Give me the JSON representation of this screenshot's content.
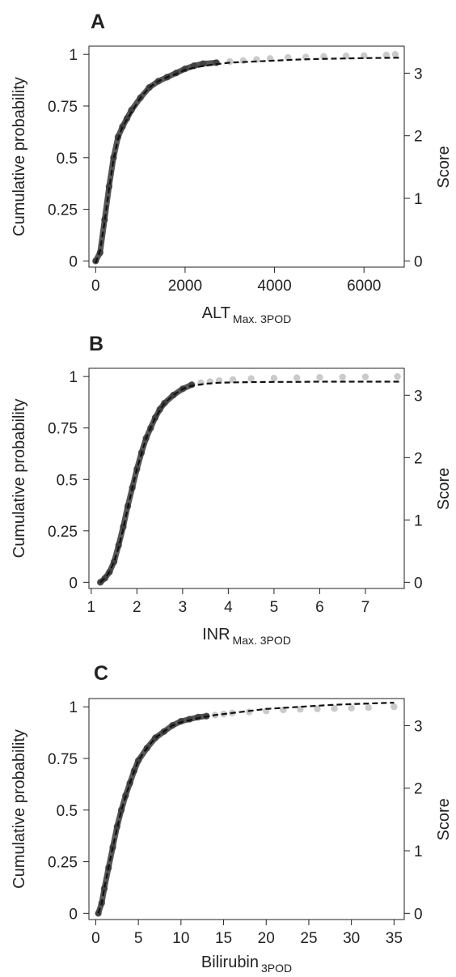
{
  "chart_data": [
    {
      "panel": "A",
      "type": "scatter",
      "x_label_main": "ALT",
      "x_label_sub": "Max. 3POD",
      "y_label_left": "Cumulative probability",
      "y_label_right": "Score",
      "xlim": [
        -150,
        6900
      ],
      "ylim": [
        -0.03,
        1.04
      ],
      "x_ticks": [
        0,
        2000,
        4000,
        6000
      ],
      "x_tick_labels": [
        "0",
        "2000",
        "4000",
        "6000"
      ],
      "y_ticks": [
        0,
        0.25,
        0.5,
        0.75,
        1
      ],
      "y_tick_labels": [
        "0",
        "0.25",
        "0.5",
        "0.75",
        "1"
      ],
      "score_ticks": [
        0,
        1,
        2,
        3
      ],
      "score_tick_labels": [
        "0",
        "1",
        "2",
        "3"
      ],
      "score_max": 3.3,
      "series": [
        {
          "kind": "points",
          "x": [
            0,
            100,
            200,
            300,
            400,
            500,
            600,
            700,
            800,
            1000,
            1200,
            1400,
            1600,
            1800,
            2000,
            2200,
            2400,
            2700,
            3000,
            3300,
            3600,
            3900,
            4300,
            4700,
            5100,
            5600,
            6000,
            6500,
            6700
          ],
          "y": [
            0.0,
            0.04,
            0.2,
            0.36,
            0.5,
            0.6,
            0.65,
            0.69,
            0.73,
            0.79,
            0.84,
            0.87,
            0.89,
            0.91,
            0.93,
            0.945,
            0.955,
            0.96,
            0.965,
            0.97,
            0.975,
            0.98,
            0.985,
            0.987,
            0.99,
            0.992,
            0.994,
            0.997,
            1.0
          ]
        },
        {
          "kind": "fit",
          "x": [
            0,
            100,
            200,
            300,
            400,
            500,
            600,
            800,
            1000,
            1200,
            1400,
            1600,
            1800,
            2000,
            2300,
            2600,
            3000,
            3500,
            4000,
            4500,
            5000,
            5500,
            6000,
            6500,
            6800
          ],
          "y": [
            -0.01,
            0.05,
            0.19,
            0.35,
            0.49,
            0.59,
            0.65,
            0.72,
            0.79,
            0.84,
            0.87,
            0.89,
            0.905,
            0.925,
            0.94,
            0.95,
            0.96,
            0.965,
            0.97,
            0.975,
            0.978,
            0.98,
            0.982,
            0.983,
            0.984
          ]
        }
      ]
    },
    {
      "panel": "B",
      "type": "scatter",
      "x_label_main": "INR",
      "x_label_sub": "Max. 3POD",
      "y_label_left": "Cumulative probability",
      "y_label_right": "Score",
      "xlim": [
        0.95,
        7.85
      ],
      "ylim": [
        -0.03,
        1.04
      ],
      "x_ticks": [
        1,
        2,
        3,
        4,
        5,
        6,
        7
      ],
      "x_tick_labels": [
        "1",
        "2",
        "3",
        "4",
        "5",
        "6",
        "7"
      ],
      "y_ticks": [
        0,
        0.25,
        0.5,
        0.75,
        1
      ],
      "y_tick_labels": [
        "0",
        "0.25",
        "0.5",
        "0.75",
        "1"
      ],
      "score_ticks": [
        0,
        1,
        2,
        3
      ],
      "score_tick_labels": [
        "0",
        "1",
        "2",
        "3"
      ],
      "score_max": 3.3,
      "series": [
        {
          "kind": "points",
          "x": [
            1.2,
            1.3,
            1.4,
            1.5,
            1.6,
            1.7,
            1.8,
            1.9,
            2.0,
            2.1,
            2.2,
            2.3,
            2.4,
            2.5,
            2.6,
            2.8,
            3.0,
            3.2,
            3.4,
            3.6,
            3.8,
            4.1,
            4.5,
            5.0,
            5.5,
            6.0,
            6.5,
            7.0,
            7.7
          ],
          "y": [
            0.0,
            0.02,
            0.05,
            0.1,
            0.18,
            0.27,
            0.37,
            0.46,
            0.55,
            0.63,
            0.7,
            0.75,
            0.8,
            0.84,
            0.87,
            0.91,
            0.94,
            0.96,
            0.97,
            0.975,
            0.98,
            0.985,
            0.99,
            0.992,
            0.994,
            0.996,
            0.997,
            0.998,
            1.0
          ]
        },
        {
          "kind": "fit",
          "x": [
            1.2,
            1.3,
            1.4,
            1.5,
            1.6,
            1.7,
            1.8,
            1.9,
            2.0,
            2.2,
            2.4,
            2.6,
            2.8,
            3.0,
            3.2,
            3.5,
            3.8,
            4.2,
            4.6,
            5.0,
            5.5,
            6.0,
            6.5,
            7.0,
            7.8
          ],
          "y": [
            0.0,
            0.02,
            0.05,
            0.1,
            0.17,
            0.26,
            0.36,
            0.46,
            0.55,
            0.7,
            0.8,
            0.87,
            0.91,
            0.94,
            0.955,
            0.965,
            0.97,
            0.972,
            0.973,
            0.974,
            0.974,
            0.975,
            0.975,
            0.975,
            0.975
          ]
        }
      ]
    },
    {
      "panel": "C",
      "type": "scatter",
      "x_label_main": "Bilirubin",
      "x_label_sub": "3POD",
      "y_label_left": "Cumulative probability",
      "y_label_right": "Score",
      "xlim": [
        -0.8,
        36.2
      ],
      "ylim": [
        -0.03,
        1.04
      ],
      "x_ticks": [
        0,
        5,
        10,
        15,
        20,
        25,
        30,
        35
      ],
      "x_tick_labels": [
        "0",
        "5",
        "10",
        "15",
        "20",
        "25",
        "30",
        "35"
      ],
      "y_ticks": [
        0,
        0.25,
        0.5,
        0.75,
        1
      ],
      "y_tick_labels": [
        "0",
        "0.25",
        "0.5",
        "0.75",
        "1"
      ],
      "score_ticks": [
        0,
        1,
        2,
        3
      ],
      "score_tick_labels": [
        "0",
        "1",
        "2",
        "3"
      ],
      "score_max": 3.3,
      "series": [
        {
          "kind": "points",
          "x": [
            0.3,
            0.7,
            1.0,
            1.5,
            2.0,
            2.5,
            3.0,
            3.5,
            4.0,
            4.5,
            5.0,
            6.0,
            7.0,
            8.0,
            9.0,
            10.0,
            11.0,
            12.0,
            13.0,
            14.0,
            15.0,
            16.0,
            18.0,
            20.0,
            22.0,
            24.0,
            26.0,
            28.0,
            30.0,
            32.0,
            35.0
          ],
          "y": [
            0.0,
            0.05,
            0.12,
            0.22,
            0.32,
            0.42,
            0.5,
            0.57,
            0.63,
            0.69,
            0.74,
            0.8,
            0.85,
            0.88,
            0.91,
            0.93,
            0.94,
            0.95,
            0.955,
            0.96,
            0.965,
            0.97,
            0.975,
            0.98,
            0.985,
            0.988,
            0.99,
            0.992,
            0.994,
            0.996,
            1.0
          ]
        },
        {
          "kind": "fit",
          "x": [
            0.3,
            0.7,
            1.0,
            1.5,
            2.0,
            3.0,
            4.0,
            5.0,
            6.0,
            7.0,
            8.0,
            9.0,
            10.0,
            12.0,
            14.0,
            16.0,
            18.0,
            20.0,
            22.0,
            24.0,
            26.0,
            28.0,
            30.0,
            32.0,
            35.0
          ],
          "y": [
            0.0,
            0.05,
            0.12,
            0.22,
            0.32,
            0.5,
            0.63,
            0.74,
            0.8,
            0.85,
            0.88,
            0.91,
            0.925,
            0.945,
            0.96,
            0.97,
            0.98,
            0.99,
            0.995,
            1.0,
            1.005,
            1.01,
            1.013,
            1.016,
            1.02
          ]
        }
      ]
    }
  ],
  "colors": {
    "axis": "#222222",
    "fit_line": "#111111",
    "points_dense": "#3a3a3a",
    "points_sparse": "#bdbdbd"
  }
}
